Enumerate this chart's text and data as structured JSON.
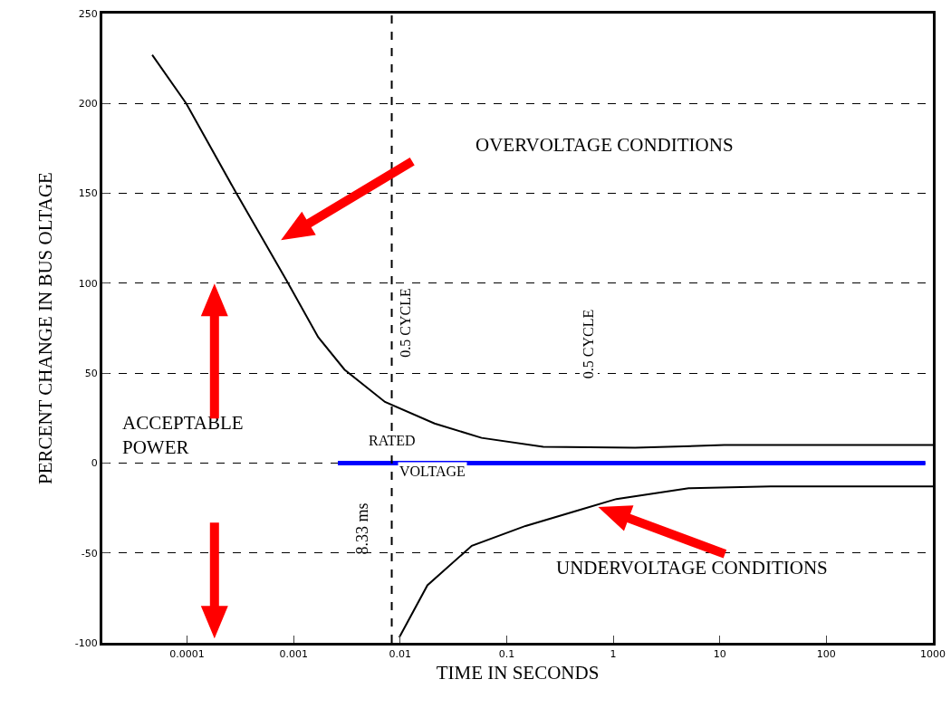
{
  "chart_data": {
    "type": "line",
    "xlabel": "TIME IN SECONDS",
    "ylabel": "PERCENT CHANGE IN BUS OLTAGE",
    "log": "x",
    "grid": "y",
    "marker": "none",
    "xlim": [
      1.6e-05,
      1000
    ],
    "xticks": [
      0.0001,
      0.001,
      0.01,
      0.1,
      1,
      10,
      100,
      1000
    ],
    "ylim": [
      -100,
      250
    ],
    "yticks": [
      -100,
      -50,
      0,
      50,
      100,
      150,
      200,
      250
    ],
    "series": [
      {
        "color": "#000000",
        "x": [
          4.7e-05,
          9.8e-05,
          0.00029,
          0.00085,
          0.0017,
          0.003,
          0.0072,
          0.021,
          0.058,
          0.22,
          1.6,
          11,
          1000
        ],
        "values": [
          227,
          200,
          150,
          102,
          70,
          52,
          34,
          22,
          14,
          9,
          8.5,
          10,
          10
        ]
      },
      {
        "color": "#000000",
        "x": [
          0.0098,
          0.018,
          0.047,
          0.15,
          0.49,
          1.07,
          5.1,
          30,
          1000
        ],
        "values": [
          -97,
          -68,
          -46,
          -35,
          -26,
          -20,
          -14,
          -13,
          -13
        ]
      },
      {
        "color": "#0000ff",
        "x": [
          0.0026,
          850
        ],
        "values": [
          0,
          0
        ]
      }
    ],
    "ref_lines": [
      {
        "axis": "x",
        "value": 0.00833,
        "label": "8.33 ms",
        "color": "#000000",
        "line_style": "dashed"
      }
    ],
    "annotations": [
      "OVERVOLTAGE CONDITIONS",
      "UNDERVOLTAGE CONDITIONS",
      "ACCEPTABLE\nPOWER",
      "RATED",
      "VOLTAGE",
      "0.5 CYCLE",
      "0.5 CYCLE"
    ]
  }
}
